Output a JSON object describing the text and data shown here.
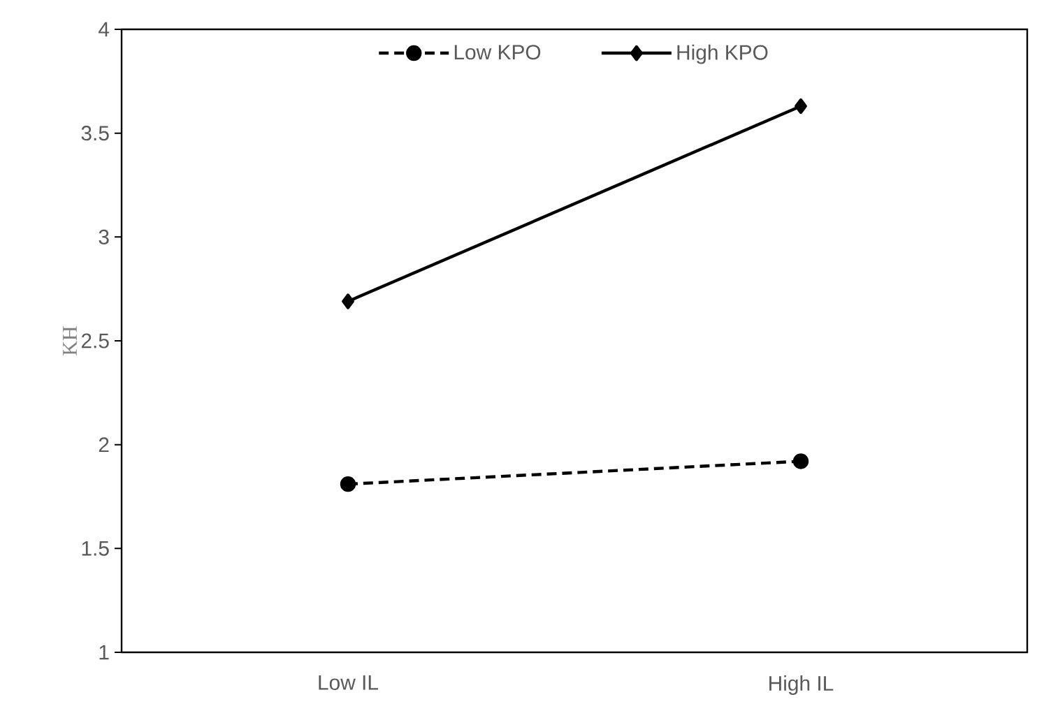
{
  "chart_data": {
    "type": "line",
    "ylabel": "KH",
    "categories": [
      "Low IL",
      "High IL"
    ],
    "series": [
      {
        "name": "Low KPO",
        "color": "#000000",
        "values": [
          1.81,
          1.92
        ],
        "marker": "circle",
        "line_style": "dashed"
      },
      {
        "name": "High KPO",
        "color": "#000000",
        "values": [
          2.69,
          3.63
        ],
        "marker": "diamond",
        "line_style": "solid"
      }
    ],
    "ylim": [
      1,
      4
    ],
    "yticks": [
      1,
      1.5,
      2,
      2.5,
      3,
      3.5,
      4
    ],
    "grid": false,
    "legend": "top"
  }
}
